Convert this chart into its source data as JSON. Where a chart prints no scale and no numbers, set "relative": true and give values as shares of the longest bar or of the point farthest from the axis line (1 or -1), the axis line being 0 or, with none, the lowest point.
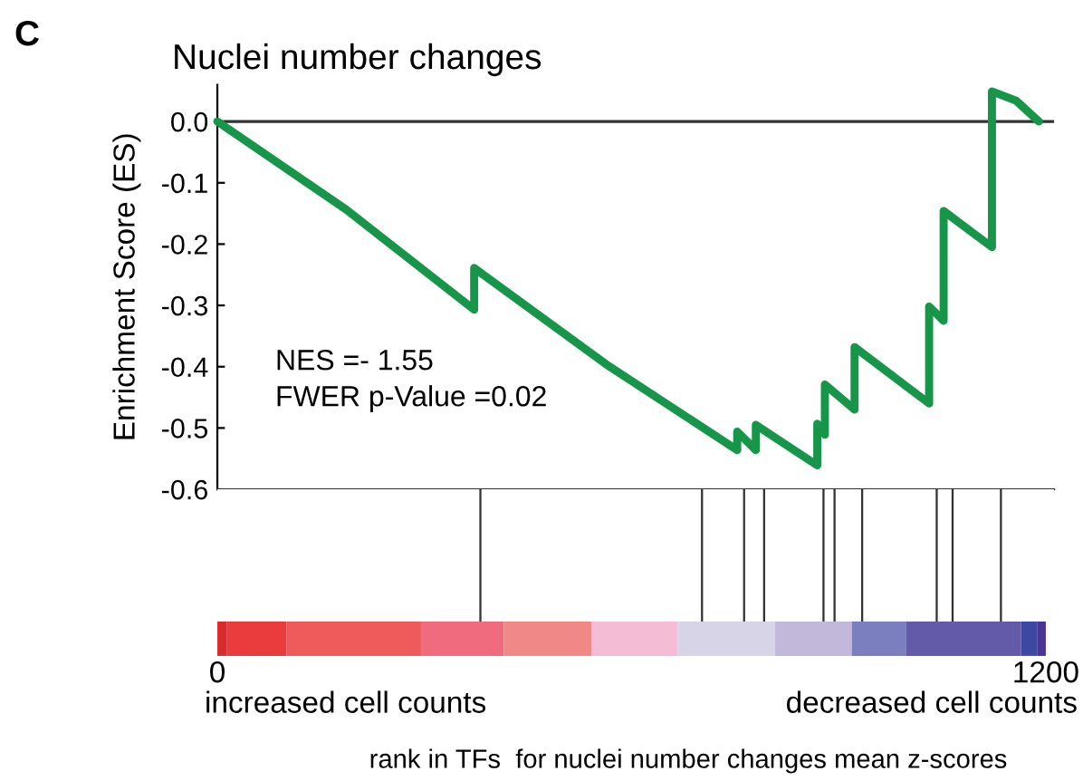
{
  "chart_data": [
    {
      "type": "line",
      "title": "Nuclei number changes",
      "ylabel": "Enrichment Score (ES)",
      "annotations": [
        "C",
        "NES =- 1.55",
        "FWER p-Value =0.02"
      ],
      "xlim": [
        0,
        1212
      ],
      "ylim": [
        -0.6,
        0.06
      ],
      "yticks": [
        {
          "value": 0.0,
          "label": "0.0"
        },
        -0.1,
        -0.2,
        -0.3,
        -0.4,
        -0.5,
        -0.6
      ],
      "tick_labels": "y",
      "ref_lines": [
        {
          "axis": "y",
          "value": 0,
          "color": "#333333"
        }
      ],
      "series": [
        {
          "color": "#17964a",
          "x": [
            0,
            187,
            372,
            372,
            567,
            753,
            753,
            780,
            780,
            869,
            869,
            880,
            880,
            923,
            923,
            1031,
            1031,
            1052,
            1052,
            1122,
            1122,
            1157,
            1190
          ],
          "values": [
            0,
            -0.144,
            -0.307,
            -0.239,
            -0.399,
            -0.536,
            -0.506,
            -0.536,
            -0.495,
            -0.561,
            -0.493,
            -0.511,
            -0.429,
            -0.47,
            -0.368,
            -0.46,
            -0.302,
            -0.325,
            -0.146,
            -0.205,
            0.049,
            0.034,
            0.0
          ]
        }
      ]
    },
    {
      "type": "bar",
      "relative": true,
      "xlabel": "rank in TFs  for nuclei number changes mean z-scores",
      "annotations": [
        "increased cell counts",
        "decreased cell counts"
      ],
      "xlim": [
        0,
        1212
      ],
      "xticks": [
        0,
        1200
      ],
      "tick_labels": "x",
      "x": [
        381,
        702,
        763,
        792,
        878,
        894,
        934,
        1042,
        1065,
        1135
      ],
      "values": [
        1,
        1,
        1,
        1,
        1,
        1,
        1,
        1,
        1,
        1
      ],
      "color": "#333333"
    }
  ]
}
